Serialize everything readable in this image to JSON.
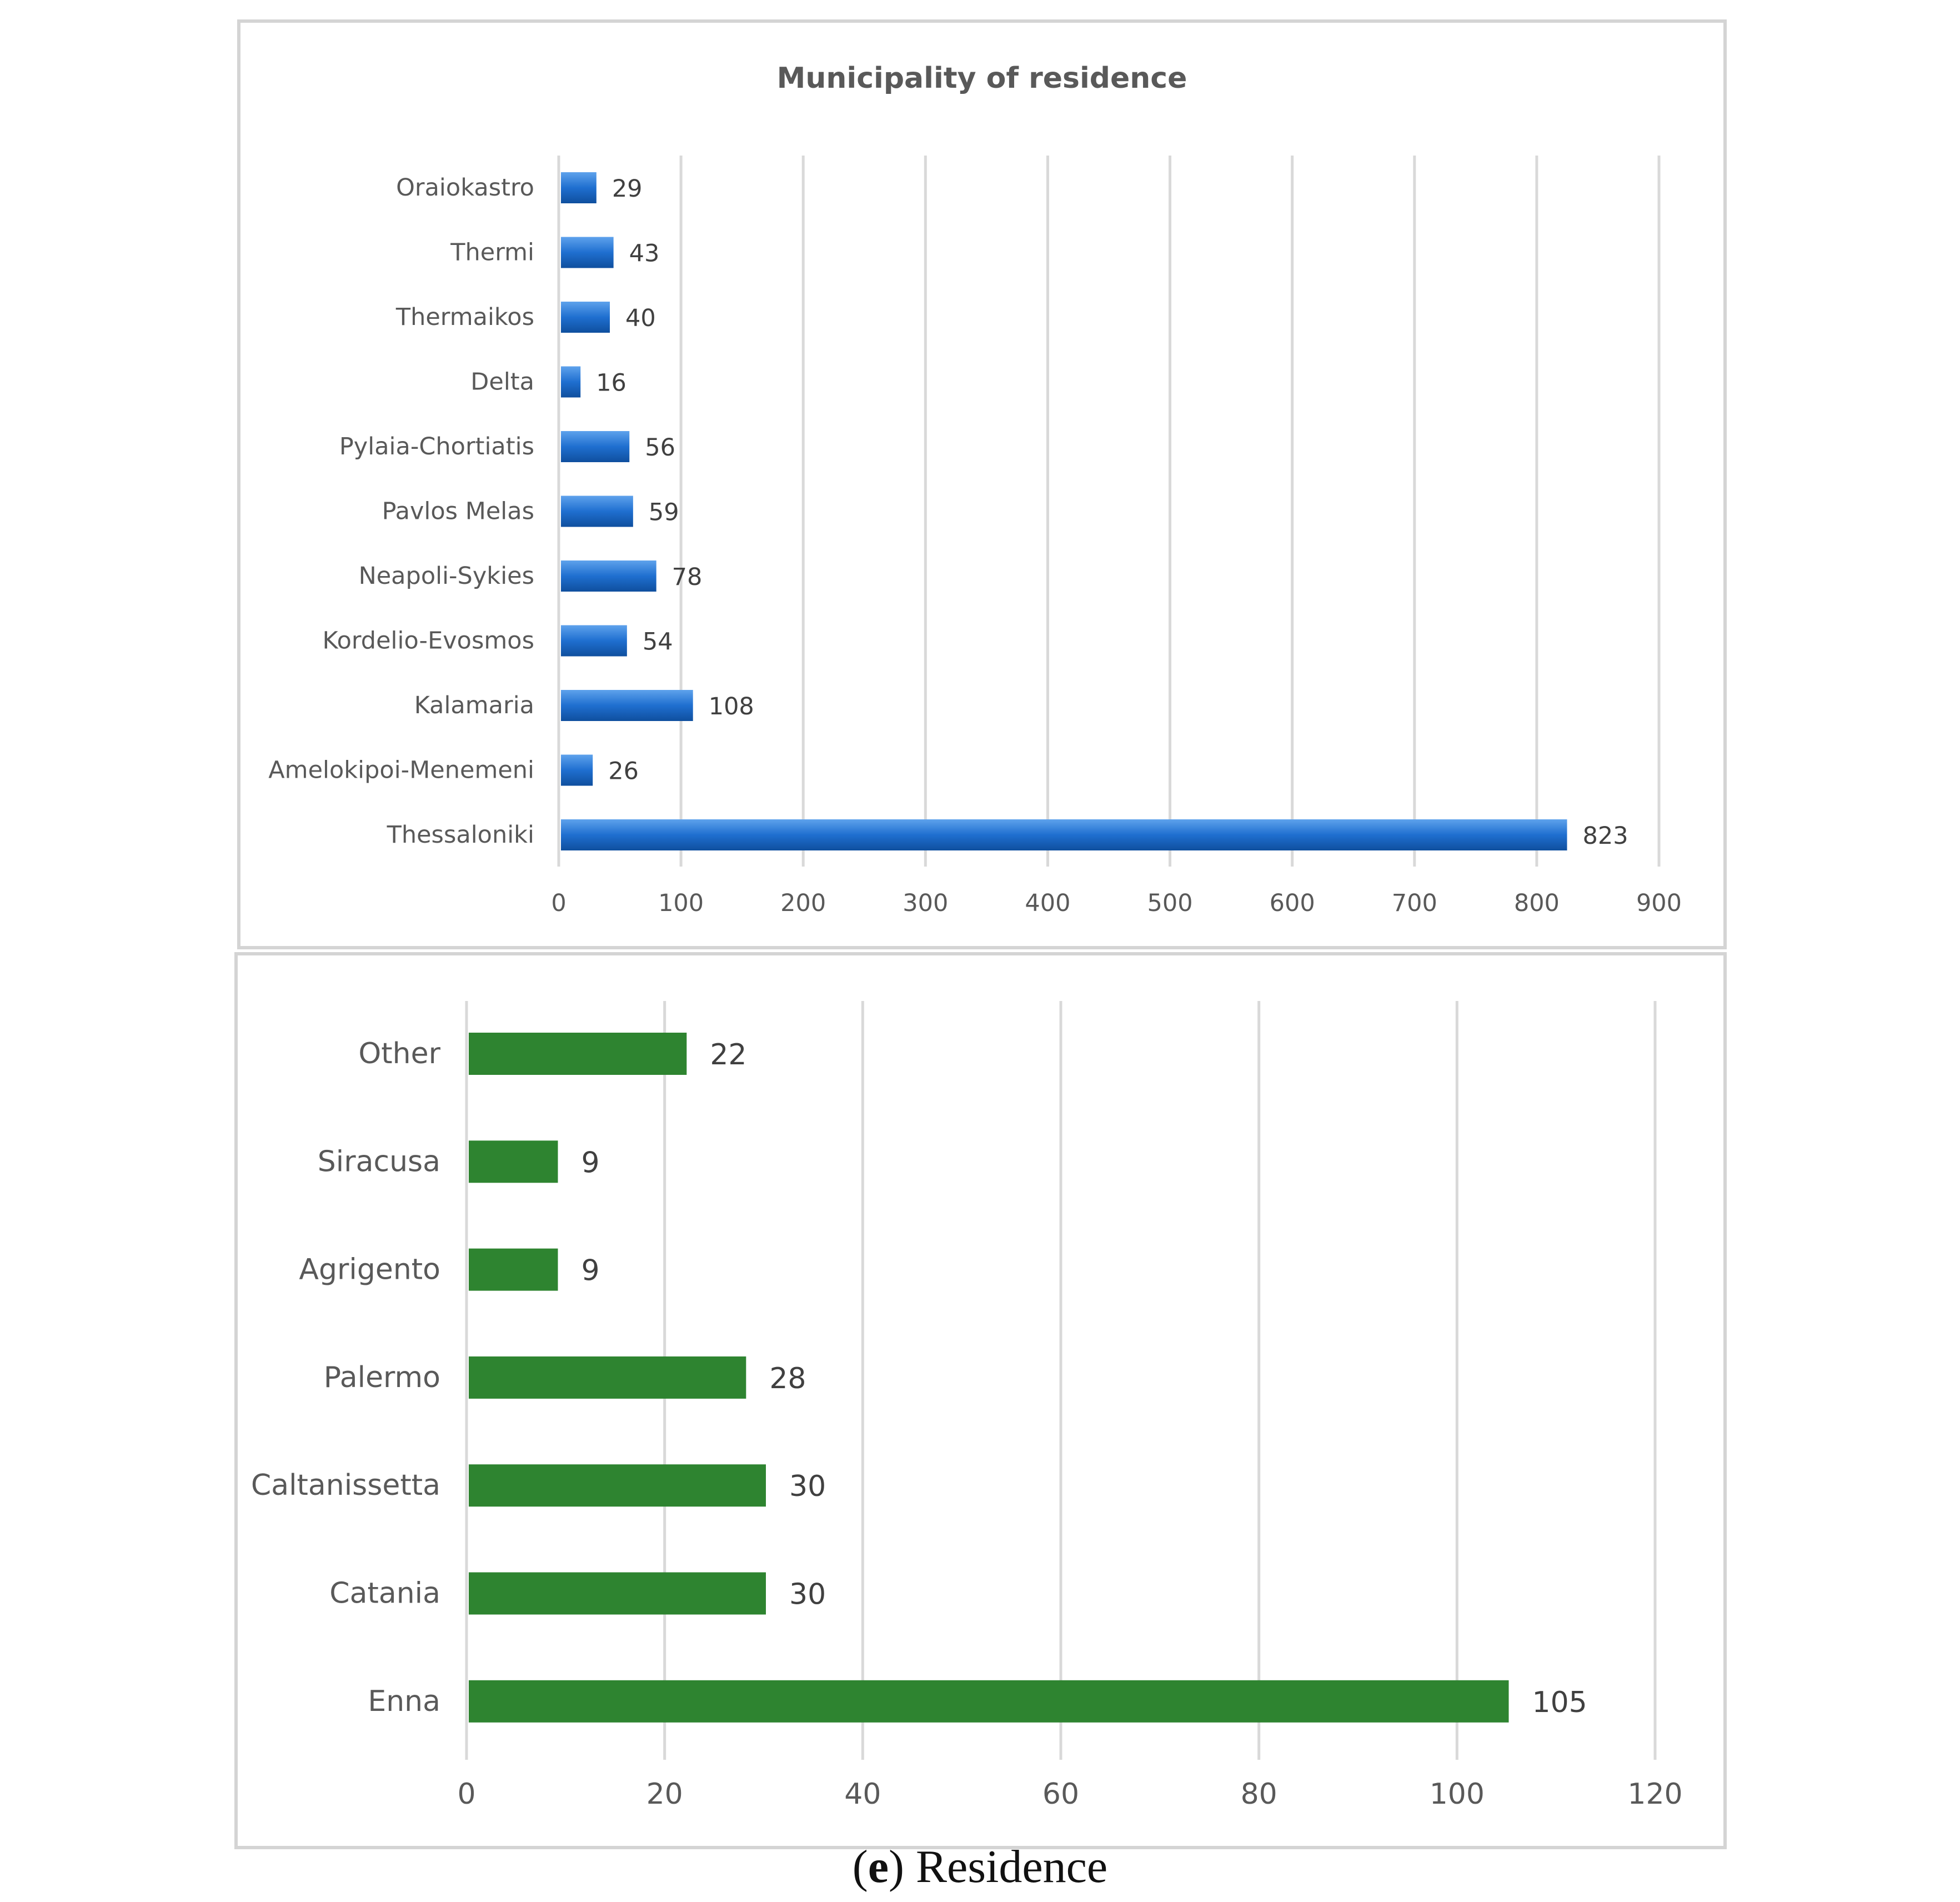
{
  "chart_data": [
    {
      "type": "bar",
      "orientation": "horizontal",
      "title": "Municipality of residence",
      "categories": [
        "Oraiokastro",
        "Thermi",
        "Thermaikos",
        "Delta",
        "Pylaia-Chortiatis",
        "Pavlos Melas",
        "Neapoli-Sykies",
        "Kordelio-Evosmos",
        "Kalamaria",
        "Amelokipoi-Menemeni",
        "Thessaloniki"
      ],
      "values": [
        29,
        43,
        40,
        16,
        56,
        59,
        78,
        54,
        108,
        26,
        823
      ],
      "xlim": [
        0,
        900
      ],
      "xticks": [
        0,
        100,
        200,
        300,
        400,
        500,
        600,
        700,
        800,
        900
      ],
      "grid": true,
      "bar_color": "#1f6fd0",
      "data_labels": true
    },
    {
      "type": "bar",
      "orientation": "horizontal",
      "title": "",
      "categories": [
        "Other",
        "Siracusa",
        "Agrigento",
        "Palermo",
        "Caltanissetta",
        "Catania",
        "Enna"
      ],
      "values": [
        22,
        9,
        9,
        28,
        30,
        30,
        105
      ],
      "xlim": [
        0,
        120
      ],
      "xticks": [
        0,
        20,
        40,
        60,
        80,
        100,
        120
      ],
      "grid": true,
      "bar_color": "#2e8430",
      "data_labels": true
    }
  ],
  "caption": {
    "letter": "e",
    "text": "Residence"
  }
}
